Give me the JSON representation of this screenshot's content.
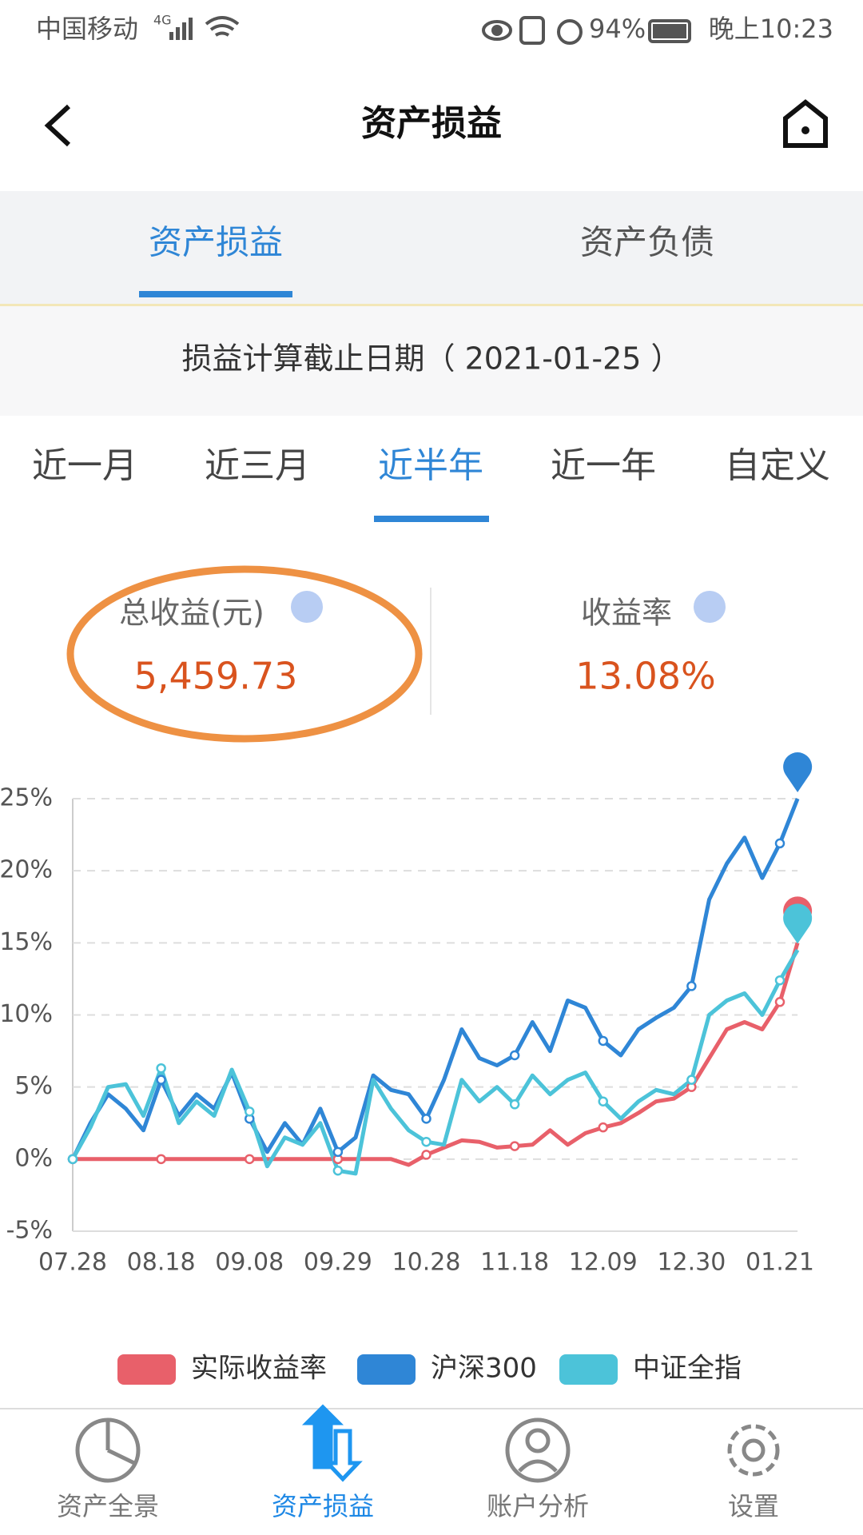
{
  "status_bar": {
    "carrier": "中国移动",
    "network": "4G",
    "battery": "94%",
    "time": "晚上10:23"
  },
  "header": {
    "title": "资产损益"
  },
  "tabs": [
    "资产损益",
    "资产负债"
  ],
  "date_line": "损益计算截止日期（ 2021-01-25 ）",
  "periods": [
    "近一月",
    "近三月",
    "近半年",
    "近一年",
    "自定义"
  ],
  "stats": [
    {
      "label": "总收益(元)",
      "value": "5,459.73"
    },
    {
      "label": "收益率",
      "value": "13.08%"
    }
  ],
  "chart_data": {
    "type": "line",
    "categories": [
      "07.28",
      null,
      null,
      null,
      null,
      "08.18",
      null,
      null,
      null,
      null,
      "09.08",
      null,
      null,
      null,
      null,
      "09.29",
      null,
      null,
      null,
      null,
      "10.28",
      null,
      null,
      null,
      null,
      "11.18",
      null,
      null,
      null,
      null,
      "12.09",
      null,
      null,
      null,
      null,
      "12.30",
      null,
      null,
      null,
      null,
      "01.21",
      null
    ],
    "series": [
      {
        "name": "实际收益率",
        "color": "#e8606a",
        "values": [
          0,
          0,
          0,
          0,
          0,
          0,
          0,
          0,
          0,
          0,
          0,
          0,
          0,
          0,
          0,
          0,
          0,
          0,
          0,
          -0.4,
          0.3,
          0.8,
          1.3,
          1.2,
          0.8,
          0.9,
          1.0,
          2.0,
          1.0,
          1.8,
          2.2,
          2.5,
          3.2,
          4.0,
          4.2,
          5.0,
          7.0,
          9.0,
          9.5,
          9.0,
          10.9,
          15.0
        ]
      },
      {
        "name": "沪深300",
        "color": "#2f86d6",
        "values": [
          0,
          2.5,
          4.5,
          3.5,
          2,
          5.5,
          3,
          4.5,
          3.5,
          6,
          2.8,
          0.5,
          2.5,
          1,
          3.5,
          0.5,
          1.5,
          5.8,
          4.8,
          4.5,
          2.8,
          5.5,
          9,
          7,
          6.5,
          7.2,
          9.5,
          7.5,
          11,
          10.5,
          8.2,
          7.2,
          9,
          9.8,
          10.5,
          12,
          18,
          20.5,
          22.3,
          19.5,
          21.9,
          25
        ]
      },
      {
        "name": "中证全指",
        "color": "#4cc3d9",
        "values": [
          0,
          2.2,
          5,
          5.2,
          3,
          6.3,
          2.5,
          4,
          3,
          6.2,
          3.3,
          -0.5,
          1.5,
          1,
          2.5,
          -0.8,
          -1,
          5.5,
          3.5,
          2,
          1.2,
          1,
          5.5,
          4,
          5,
          3.8,
          5.8,
          4.5,
          5.5,
          6,
          4,
          2.8,
          4,
          4.8,
          4.5,
          5.5,
          10,
          11,
          11.5,
          10,
          12.4,
          14.5
        ]
      }
    ],
    "ylim": [
      -5,
      25
    ],
    "yticks": [
      {
        "value": -5,
        "label": "-5%"
      },
      {
        "value": 0,
        "label": "0%"
      },
      {
        "value": 5,
        "label": "5%"
      },
      {
        "value": 10,
        "label": "10%"
      },
      {
        "value": 15,
        "label": "15%"
      },
      {
        "value": 20,
        "label": "20%"
      },
      {
        "value": 25,
        "label": "25%"
      }
    ],
    "grid": true
  },
  "nav": [
    "资产全景",
    "资产损益",
    "账户分析",
    "设置"
  ]
}
